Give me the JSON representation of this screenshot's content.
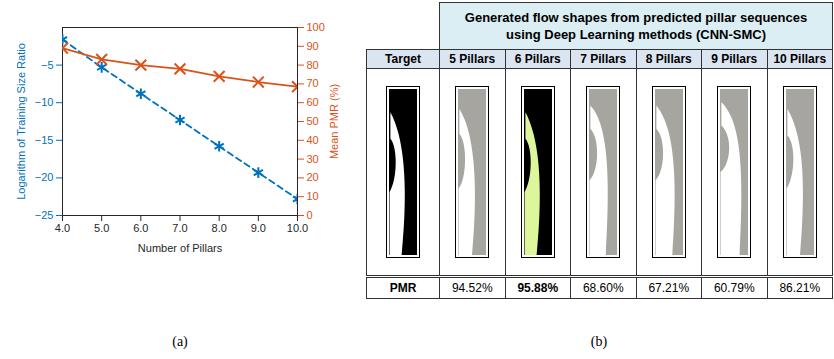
{
  "chart_data": {
    "type": "line",
    "caption": "(a)",
    "x_label": "Number of Pillars",
    "y_label": "Logarithm of Training Size Ratio",
    "y2_label": "Mean PMR (%)",
    "x": [
      4,
      5,
      6,
      7,
      8,
      9,
      10
    ],
    "xlim": [
      4,
      10
    ],
    "xticks": [
      4,
      5,
      6,
      7,
      8,
      9,
      10
    ],
    "ylim": [
      -25,
      0
    ],
    "yticks": [
      -25,
      -20,
      -15,
      -10,
      -5
    ],
    "y2lim": [
      0,
      100
    ],
    "y2ticks": [
      0,
      10,
      20,
      30,
      40,
      50,
      60,
      70,
      80,
      90,
      100
    ],
    "grid": false,
    "series": [
      {
        "color": "#0072bd",
        "marker": "asterisk",
        "line_style": "dashed",
        "values": [
          -1.6,
          -5.3,
          -8.8,
          -12.3,
          -15.8,
          -19.3,
          -22.8
        ]
      },
      {
        "color": "#d95319",
        "marker": "x",
        "line_style": "solid",
        "axis": "y2",
        "values": [
          89,
          83,
          80,
          78,
          74,
          71,
          68.5
        ]
      }
    ]
  },
  "panel_b": {
    "caption": "(b)",
    "header": [
      "Generated flow shapes from predicted pillar sequences",
      "using Deep Learning methods (CNN-SMC)"
    ],
    "columns": [
      "Target",
      "5 Pillars",
      "6 Pillars",
      "7 Pillars",
      "8 Pillars",
      "9 Pillars",
      "10 Pillars"
    ],
    "row_label": "PMR",
    "pmr": [
      {
        "value": 94.52,
        "label": "94.52%"
      },
      {
        "value": 95.88,
        "label": "95.88%"
      },
      {
        "value": 68.6,
        "label": "68.60%"
      },
      {
        "value": 67.21,
        "label": "67.21%"
      },
      {
        "value": 60.79,
        "label": "60.79%"
      },
      {
        "value": 86.21,
        "label": "86.21%"
      }
    ]
  }
}
